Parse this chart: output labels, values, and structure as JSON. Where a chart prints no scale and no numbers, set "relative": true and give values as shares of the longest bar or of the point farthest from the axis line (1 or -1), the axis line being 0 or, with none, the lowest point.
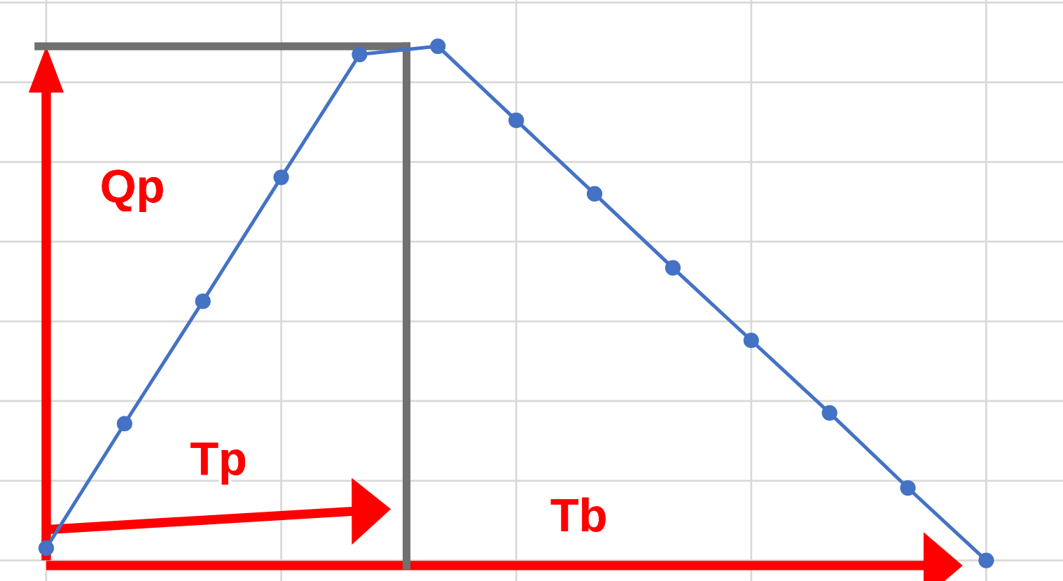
{
  "chart_data": {
    "type": "line",
    "relative": true,
    "categories": [
      null,
      null,
      null,
      null,
      null,
      null,
      null,
      null,
      null,
      null,
      null,
      null,
      null
    ],
    "series": [
      {
        "color": "#4472c4",
        "values": [
          0.024,
          0.266,
          0.504,
          0.745,
          0.984,
          1,
          0.856,
          0.713,
          0.569,
          0.428,
          0.287,
          0.141,
          0
        ]
      }
    ],
    "marker": "circle",
    "line_style": "solid",
    "grid": true,
    "legend": false,
    "annotations": [
      "Qp",
      "Tp",
      "Tb"
    ]
  }
}
